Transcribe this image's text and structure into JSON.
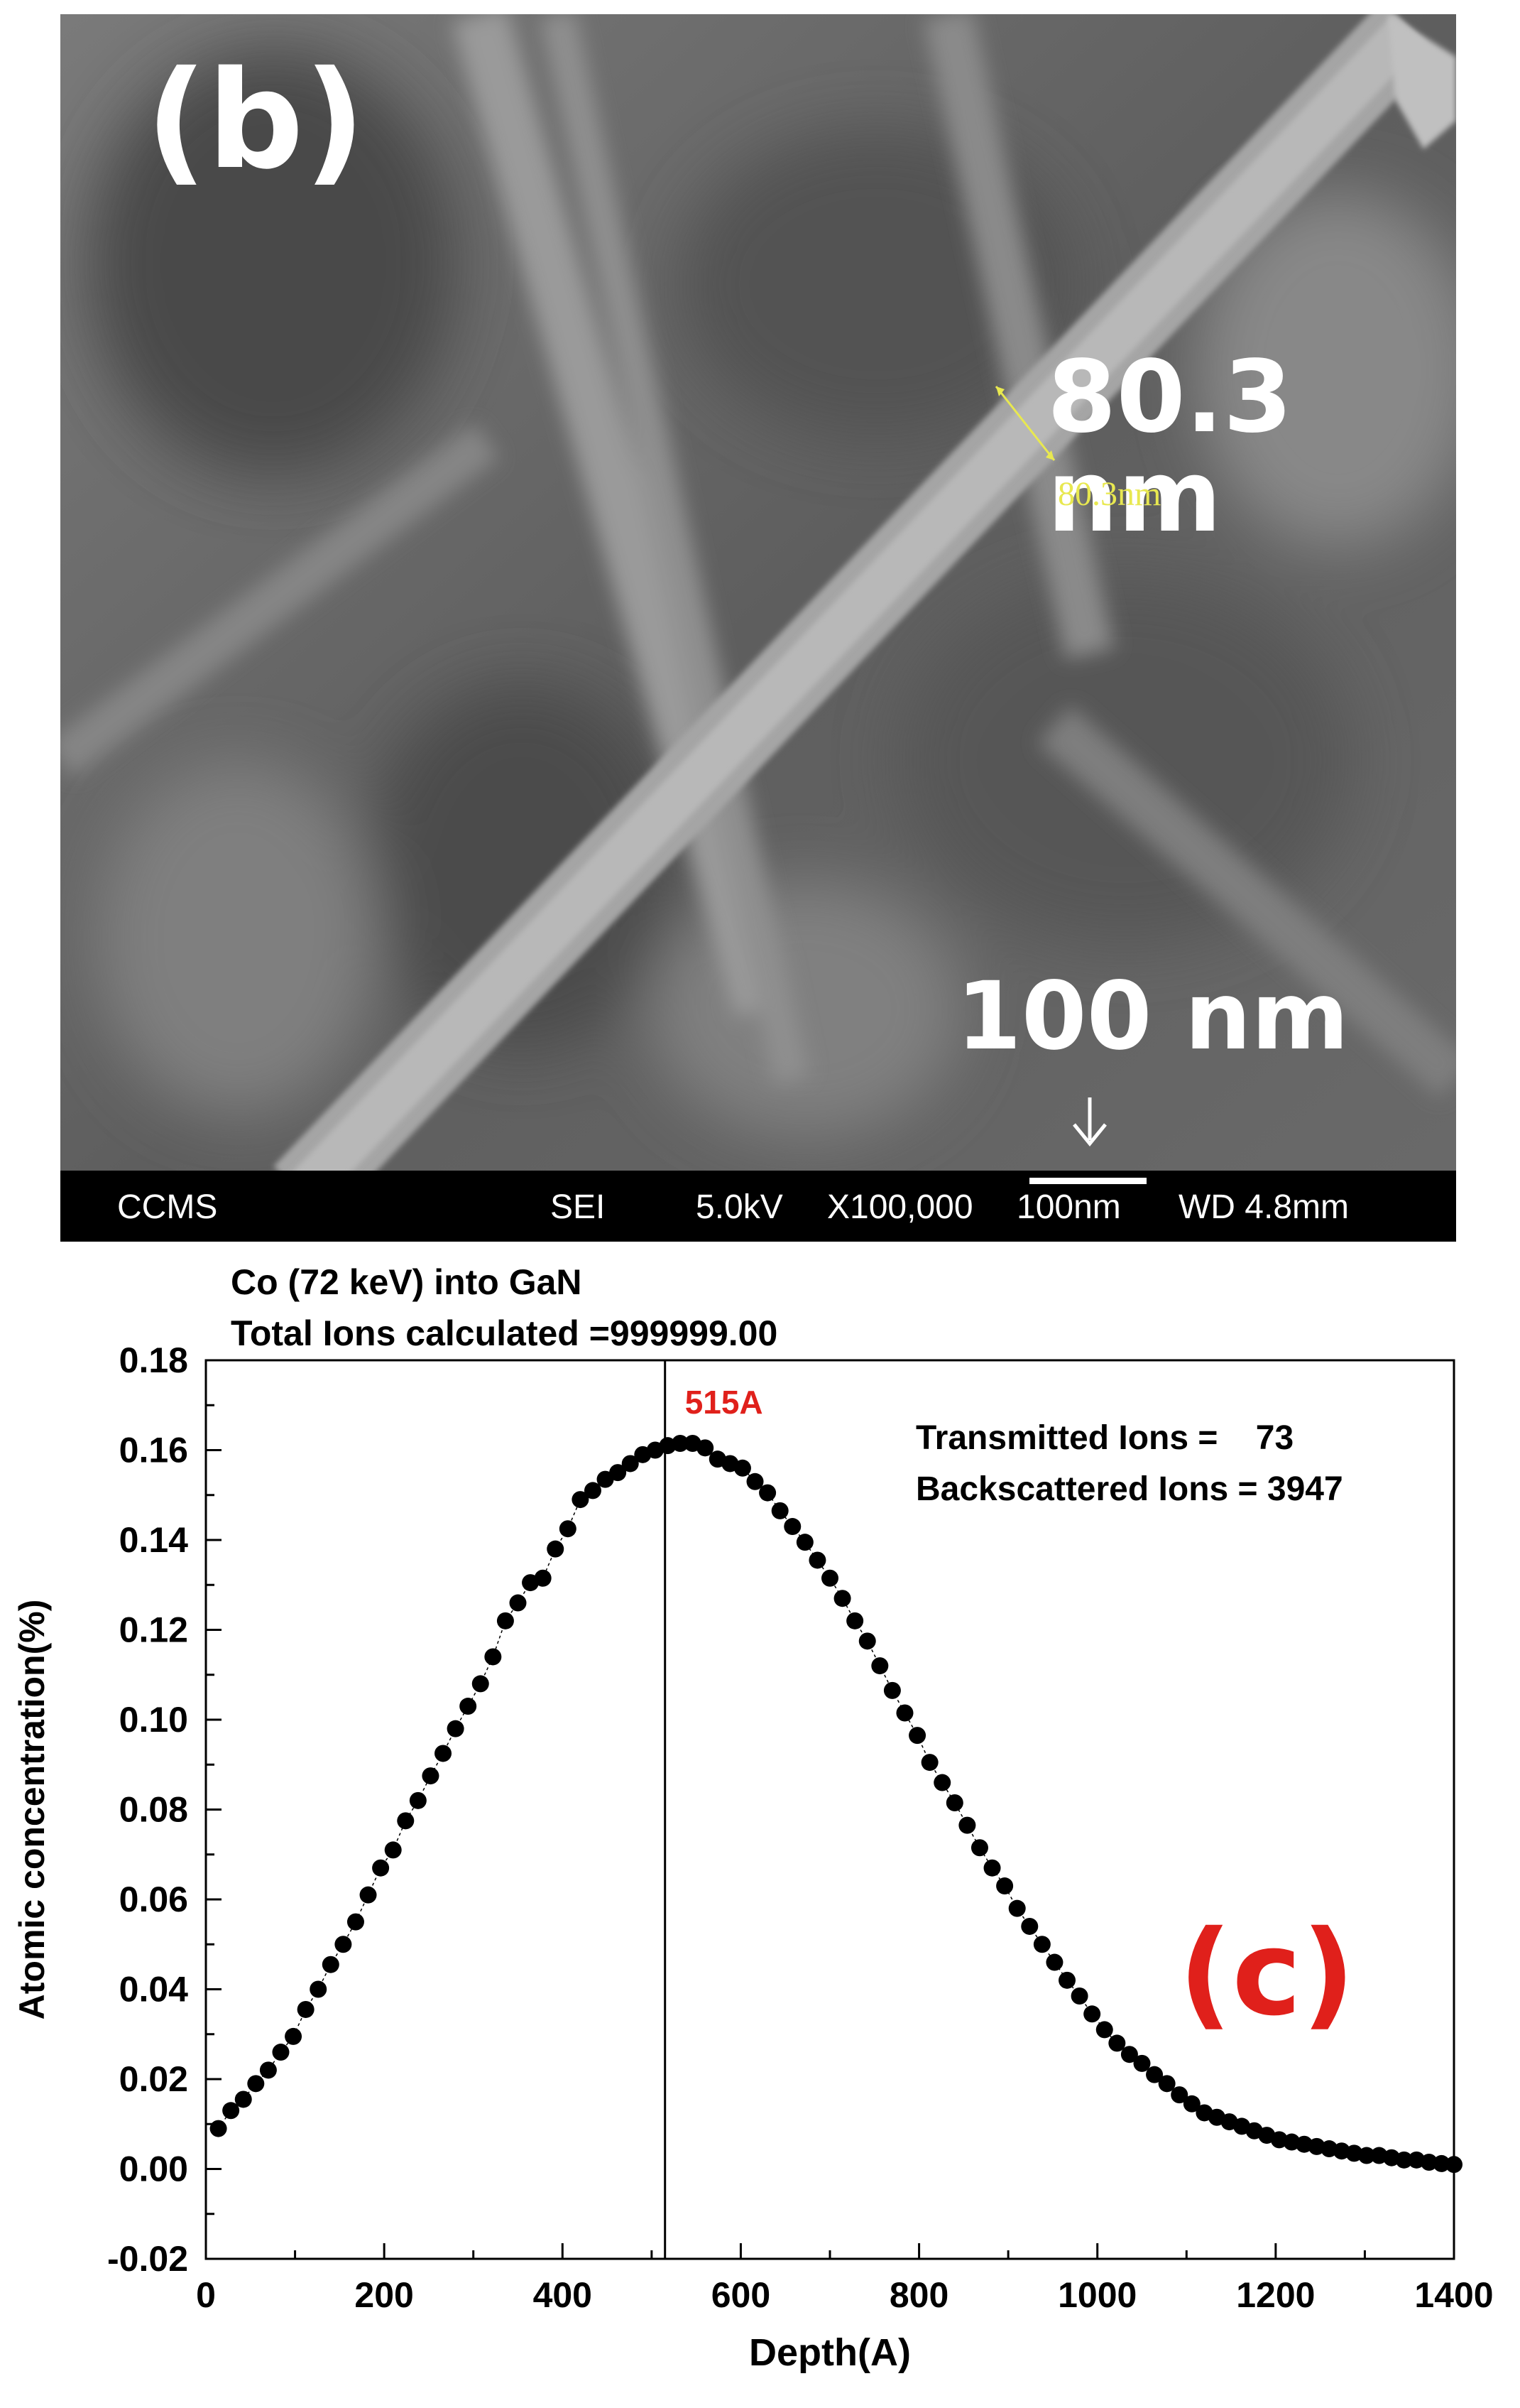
{
  "sem_image": {
    "panel_label": "(b)",
    "measure_label_large": "80.3 nm",
    "measure_label_small": "80.3nm",
    "scale_label_large": "100 nm",
    "info_bar": {
      "lab": "CCMS",
      "detector": "SEI",
      "voltage": "5.0kV",
      "magnification": "X100,000",
      "scale": "100nm",
      "working_distance": "WD 4.8mm"
    }
  },
  "chart_data": {
    "type": "scatter",
    "title_lines": [
      "Co (72 keV) into  GaN",
      "Total Ions calculated =999999.00"
    ],
    "xlabel": "Depth(A)",
    "ylabel": "Atomic concentration(%)",
    "xlim": [
      0,
      1400
    ],
    "ylim": [
      -0.02,
      0.18
    ],
    "x_ticks": [
      "0",
      "200",
      "400",
      "600",
      "800",
      "1000",
      "1200",
      "1400"
    ],
    "y_ticks": [
      "-0.02",
      "0.00",
      "0.02",
      "0.04",
      "0.06",
      "0.08",
      "0.10",
      "0.12",
      "0.14",
      "0.16",
      "0.18"
    ],
    "peak_line_x": 515,
    "peak_label": "515A",
    "annotation_lines": [
      "Transmitted Ions =    73",
      "Backscattered Ions = 3947"
    ],
    "panel_label": "(c)",
    "series": [
      {
        "x": [
          14,
          28,
          42,
          56,
          70,
          84,
          98,
          112,
          126,
          140,
          154,
          168,
          182,
          196,
          210,
          224,
          238,
          252,
          266,
          280,
          294,
          308,
          322,
          336,
          350,
          364,
          378,
          392,
          406,
          420,
          434,
          448,
          462,
          476,
          490,
          504,
          518,
          532,
          546,
          560,
          574,
          588,
          602,
          616,
          630,
          644,
          658,
          672,
          686,
          700,
          714,
          728,
          742,
          756,
          770,
          784,
          798,
          812,
          826,
          840,
          854,
          868,
          882,
          896,
          910,
          924,
          938,
          952,
          966,
          980,
          994,
          1008,
          1022,
          1036,
          1050,
          1064,
          1078,
          1092,
          1106,
          1120,
          1134,
          1148,
          1162,
          1176,
          1190,
          1204,
          1218,
          1232,
          1246,
          1260,
          1274,
          1288,
          1302,
          1316,
          1330,
          1344,
          1358,
          1372,
          1386,
          1400
        ],
        "y": [
          0.009,
          0.013,
          0.0155,
          0.019,
          0.022,
          0.026,
          0.0295,
          0.0355,
          0.04,
          0.0455,
          0.05,
          0.055,
          0.061,
          0.067,
          0.071,
          0.0775,
          0.082,
          0.0875,
          0.0925,
          0.098,
          0.103,
          0.108,
          0.114,
          0.122,
          0.126,
          0.1305,
          0.1315,
          0.138,
          0.1425,
          0.149,
          0.151,
          0.1535,
          0.155,
          0.157,
          0.159,
          0.16,
          0.161,
          0.1615,
          0.1615,
          0.1605,
          0.158,
          0.157,
          0.156,
          0.153,
          0.1505,
          0.1465,
          0.143,
          0.1395,
          0.1355,
          0.1315,
          0.127,
          0.122,
          0.1175,
          0.112,
          0.1065,
          0.1015,
          0.0965,
          0.0905,
          0.086,
          0.0815,
          0.0765,
          0.0715,
          0.067,
          0.063,
          0.058,
          0.054,
          0.05,
          0.046,
          0.042,
          0.0385,
          0.0345,
          0.031,
          0.028,
          0.0255,
          0.0235,
          0.021,
          0.019,
          0.0165,
          0.0145,
          0.0125,
          0.0115,
          0.0105,
          0.0095,
          0.0085,
          0.0075,
          0.0065,
          0.006,
          0.0055,
          0.005,
          0.0045,
          0.004,
          0.0035,
          0.003,
          0.003,
          0.0025,
          0.002,
          0.002,
          0.0015,
          0.0012,
          0.001
        ]
      }
    ]
  }
}
